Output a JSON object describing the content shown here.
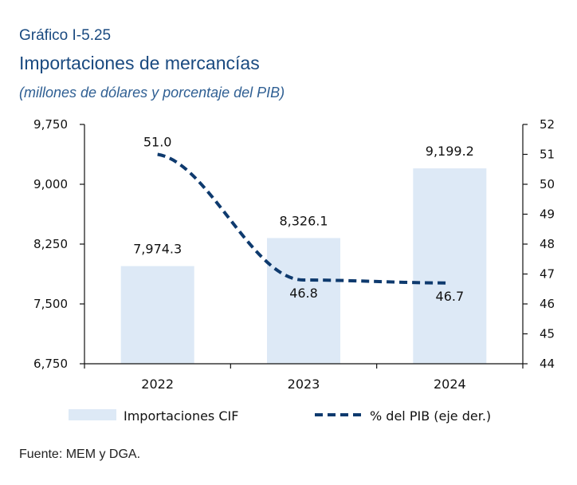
{
  "header": {
    "kicker": "Gráfico I-5.25",
    "title": "Importaciones de mercancías",
    "subtitle": "(millones de dólares y porcentaje del PIB)"
  },
  "chart_data": {
    "type": "bar",
    "categories": [
      "2022",
      "2023",
      "2024"
    ],
    "series": [
      {
        "name": "Importaciones CIF",
        "type": "bar",
        "axis": "left",
        "values": [
          7974.3,
          8326.1,
          9199.2
        ],
        "labels": [
          "7,974.3",
          "8,326.1",
          "9,199.2"
        ],
        "color": "#dde9f6"
      },
      {
        "name": "% del PIB (eje der.)",
        "type": "line",
        "axis": "right",
        "style": "dashed",
        "values": [
          51.0,
          46.8,
          46.7
        ],
        "labels": [
          "51.0",
          "46.8",
          "46.7"
        ],
        "color": "#0e3a6e"
      }
    ],
    "y_left": {
      "min": 6750,
      "max": 9750,
      "ticks": [
        6750,
        7500,
        8250,
        9000,
        9750
      ],
      "tick_labels": [
        "6,750",
        "7,500",
        "8,250",
        "9,000",
        "9,750"
      ]
    },
    "y_right": {
      "min": 44,
      "max": 52,
      "ticks": [
        44,
        45,
        46,
        47,
        48,
        49,
        50,
        51,
        52
      ],
      "tick_labels": [
        "44",
        "45",
        "46",
        "47",
        "48",
        "49",
        "50",
        "51",
        "52"
      ]
    },
    "grid": false,
    "legend": "bottom"
  },
  "footer": {
    "source": "Fuente: MEM y DGA."
  }
}
